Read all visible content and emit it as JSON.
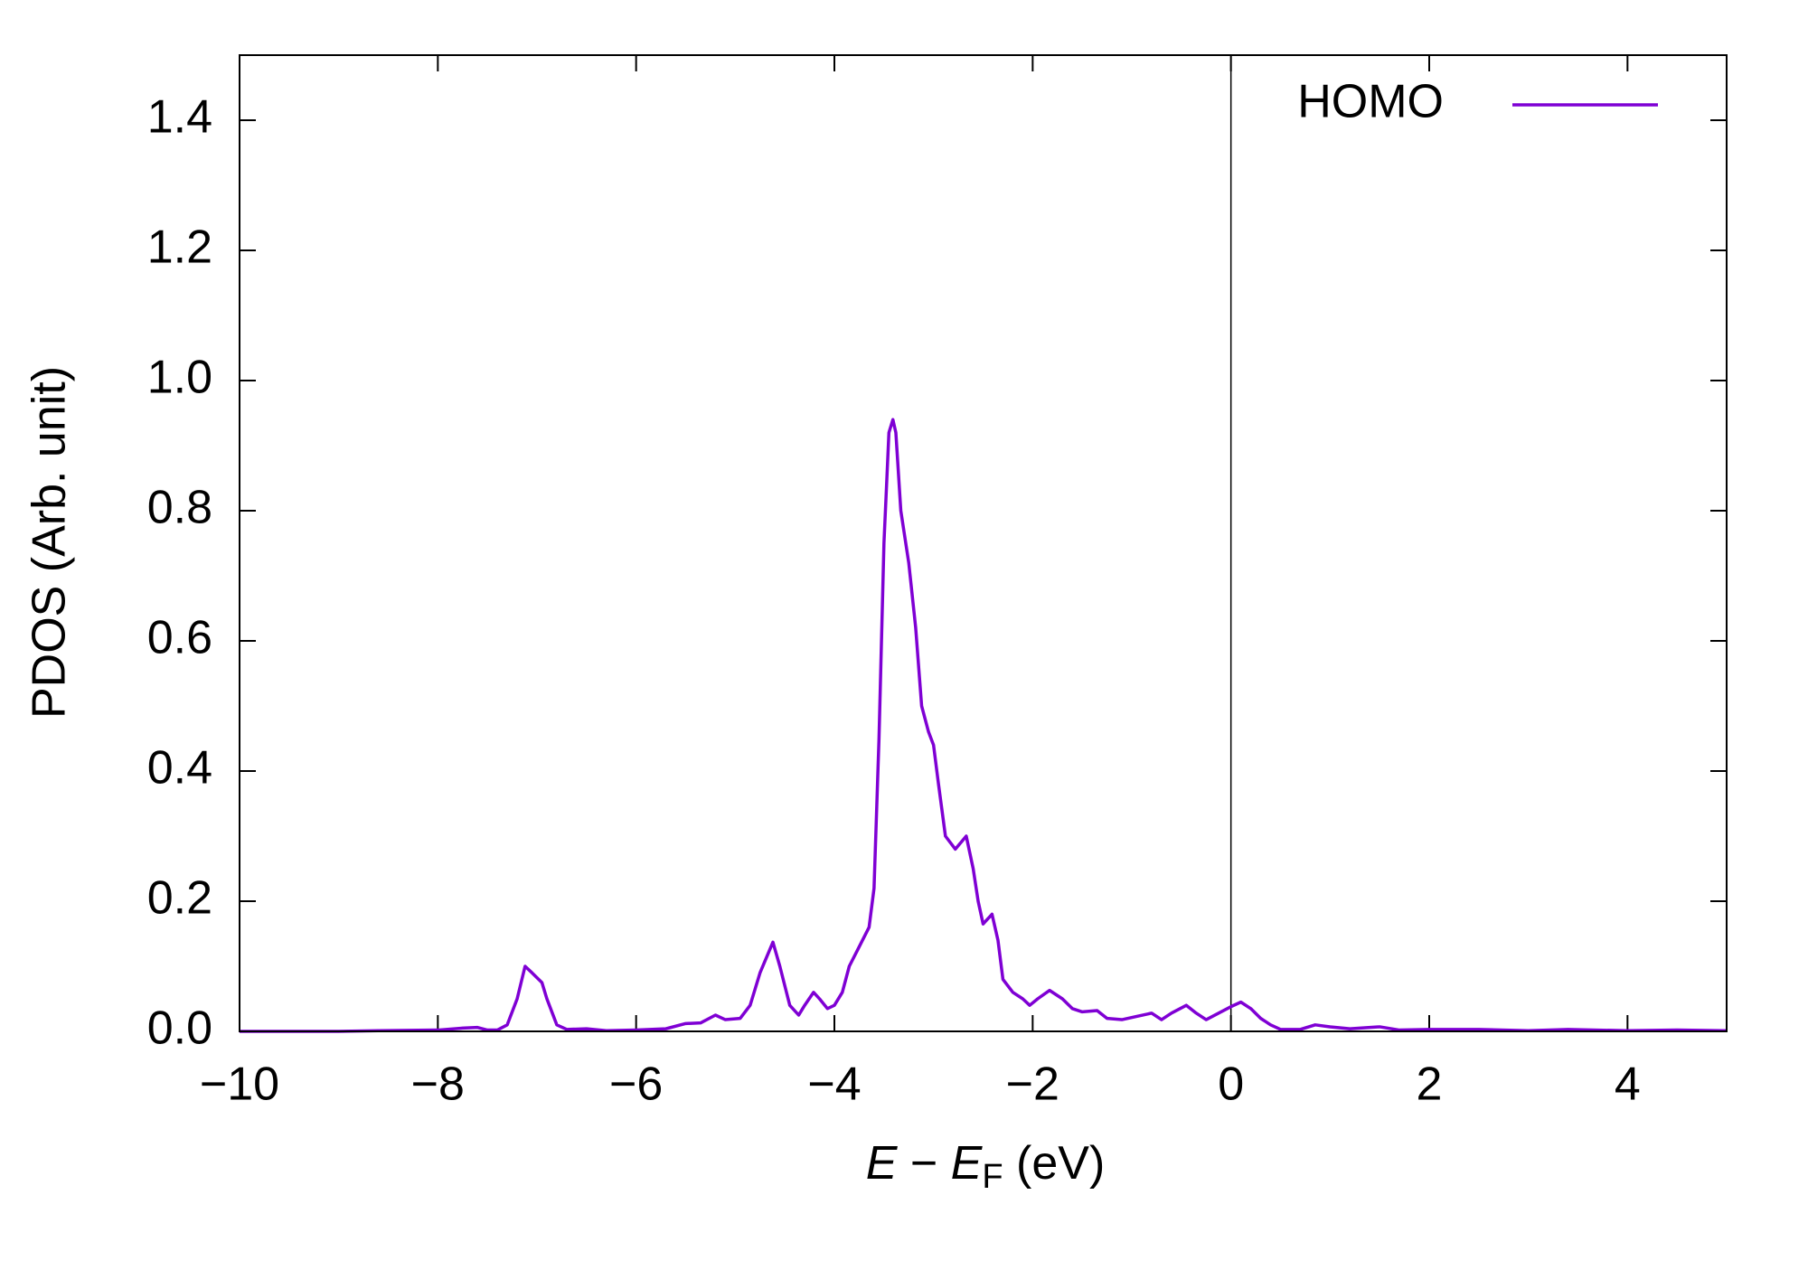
{
  "chart_data": {
    "type": "line",
    "xlabel_parts": [
      "E",
      " − ",
      "E",
      "F",
      " (eV)"
    ],
    "ylabel": "PDOS (Arb. unit)",
    "xlim": [
      -10,
      5
    ],
    "ylim": [
      0,
      1.5
    ],
    "xticks": [
      {
        "value": -10,
        "label": "−10"
      },
      {
        "value": -8,
        "label": "−8"
      },
      {
        "value": -6,
        "label": "−6"
      },
      {
        "value": -4,
        "label": "−4"
      },
      {
        "value": -2,
        "label": "−2"
      },
      0,
      2,
      4
    ],
    "yticks": [
      {
        "value": 0,
        "label": "0.0"
      },
      0.2,
      0.4,
      0.6,
      0.8,
      {
        "value": 1,
        "label": "1.0"
      },
      1.2,
      1.4
    ],
    "vline": 0,
    "legend": "top-right",
    "x": [
      -10,
      -9,
      -8.6,
      -8.0,
      -7.75,
      -7.6,
      -7.5,
      -7.4,
      -7.3,
      -7.2,
      -7.12,
      -7.05,
      -6.95,
      -6.9,
      -6.8,
      -6.7,
      -6.5,
      -6.3,
      -6.0,
      -5.7,
      -5.5,
      -5.35,
      -5.2,
      -5.1,
      -4.95,
      -4.85,
      -4.75,
      -4.62,
      -4.55,
      -4.45,
      -4.36,
      -4.3,
      -4.21,
      -4.15,
      -4.07,
      -4.0,
      -3.92,
      -3.85,
      -3.75,
      -3.65,
      -3.6,
      -3.55,
      -3.5,
      -3.45,
      -3.41,
      -3.38,
      -3.33,
      -3.25,
      -3.18,
      -3.12,
      -3.05,
      -3.0,
      -2.95,
      -2.88,
      -2.78,
      -2.67,
      -2.6,
      -2.55,
      -2.5,
      -2.41,
      -2.35,
      -2.3,
      -2.2,
      -2.1,
      -2.03,
      -1.95,
      -1.83,
      -1.7,
      -1.6,
      -1.5,
      -1.35,
      -1.25,
      -1.1,
      -0.95,
      -0.8,
      -0.7,
      -0.6,
      -0.45,
      -0.35,
      -0.25,
      -0.1,
      0.0,
      0.1,
      0.2,
      0.3,
      0.4,
      0.5,
      0.7,
      0.85,
      1.0,
      1.2,
      1.5,
      1.7,
      2.0,
      2.5,
      3.0,
      3.4,
      4.0,
      4.5,
      5.0
    ],
    "series": [
      {
        "name": "HOMO",
        "color": "#7f00d4",
        "values": [
          0,
          0,
          0.001,
          0.002,
          0.005,
          0.006,
          0.002,
          0.002,
          0.01,
          0.05,
          0.1,
          0.09,
          0.075,
          0.05,
          0.01,
          0.003,
          0.004,
          0.001,
          0.002,
          0.004,
          0.012,
          0.013,
          0.025,
          0.018,
          0.02,
          0.04,
          0.09,
          0.137,
          0.1,
          0.04,
          0.025,
          0.04,
          0.06,
          0.05,
          0.035,
          0.04,
          0.06,
          0.1,
          0.13,
          0.16,
          0.22,
          0.45,
          0.75,
          0.92,
          0.94,
          0.92,
          0.8,
          0.72,
          0.62,
          0.5,
          0.46,
          0.44,
          0.38,
          0.3,
          0.28,
          0.3,
          0.25,
          0.2,
          0.165,
          0.18,
          0.14,
          0.08,
          0.06,
          0.05,
          0.04,
          0.05,
          0.063,
          0.05,
          0.035,
          0.03,
          0.032,
          0.02,
          0.018,
          0.023,
          0.028,
          0.018,
          0.028,
          0.04,
          0.028,
          0.018,
          0.03,
          0.038,
          0.045,
          0.035,
          0.02,
          0.01,
          0.003,
          0.003,
          0.01,
          0.007,
          0.004,
          0.007,
          0.002,
          0.003,
          0.003,
          0.001,
          0.003,
          0.001,
          0.002,
          0.001
        ]
      }
    ]
  }
}
